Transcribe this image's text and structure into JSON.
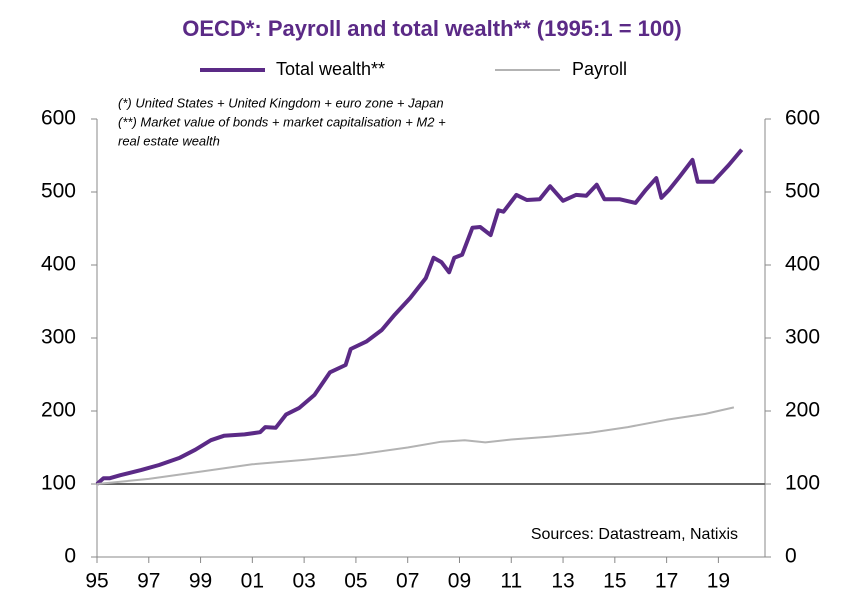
{
  "chart_data": {
    "type": "line",
    "title": "OECD*:  Payroll and total wealth** (1995:1 = 100)",
    "notes": [
      "(*) United States + United Kingdom + euro zone + Japan",
      "(**) Market value of bonds + market capitalisation + M2 +",
      "real estate wealth"
    ],
    "source": "Sources:  Datastream,  Natixis",
    "series": [
      {
        "name": "Total wealth**",
        "color": "#5b2a86",
        "x": [
          1995,
          1995.25,
          1995.5,
          1995.9,
          1996.7,
          1997.4,
          1998.2,
          1998.8,
          1999.4,
          1999.9,
          2000.7,
          2001.3,
          2001.5,
          2001.9,
          2002.3,
          2002.8,
          2003.4,
          2004,
          2004.6,
          2004.8,
          2005.4,
          2006,
          2006.5,
          2007.1,
          2007.7,
          2008,
          2008.3,
          2008.6,
          2008.8,
          2009.1,
          2009.5,
          2009.8,
          2010.2,
          2010.5,
          2010.7,
          2011.2,
          2011.6,
          2012.1,
          2012.5,
          2013,
          2013.5,
          2013.9,
          2014.3,
          2014.6,
          2015.2,
          2015.8,
          2016.2,
          2016.6,
          2016.8,
          2017.1,
          2017.5,
          2018,
          2018.2,
          2018.8,
          2019.4,
          2019.9
        ],
        "values": [
          100,
          108,
          108,
          112,
          119,
          126,
          136,
          147,
          160,
          166,
          168,
          171,
          178,
          177,
          195,
          204,
          222,
          253,
          263,
          285,
          295,
          311,
          332,
          355,
          382,
          410,
          404,
          390,
          410,
          414,
          451,
          452,
          441,
          475,
          473,
          496,
          489,
          490,
          508,
          488,
          496,
          495,
          510,
          490,
          490,
          485,
          503,
          519,
          492,
          503,
          521,
          544,
          514,
          514,
          537,
          558
        ]
      },
      {
        "name": "Payroll",
        "color": "#b3b3b3",
        "x": [
          1995,
          1997,
          1999,
          2001,
          2003,
          2005,
          2007,
          2008.3,
          2009.2,
          2010,
          2011,
          2012.5,
          2014,
          2015.5,
          2017,
          2018.5,
          2019.6
        ],
        "values": [
          100,
          107,
          117,
          127,
          133,
          140,
          150,
          158,
          160,
          157,
          161,
          165,
          170,
          178,
          188,
          196,
          205
        ]
      }
    ],
    "xlim": [
      1995,
      2020.8
    ],
    "xticks": [
      {
        "value": 1995,
        "label": "95"
      },
      {
        "value": 1997,
        "label": "97"
      },
      {
        "value": 1999,
        "label": "99"
      },
      {
        "value": 2001,
        "label": "01"
      },
      {
        "value": 2003,
        "label": "03"
      },
      {
        "value": 2005,
        "label": "05"
      },
      {
        "value": 2007,
        "label": "07"
      },
      {
        "value": 2009,
        "label": "09"
      },
      {
        "value": 2011,
        "label": "11"
      },
      {
        "value": 2013,
        "label": "13"
      },
      {
        "value": 2015,
        "label": "15"
      },
      {
        "value": 2017,
        "label": "17"
      },
      {
        "value": 2019,
        "label": "19"
      }
    ],
    "ylim": [
      0,
      600
    ],
    "yticks": [
      0,
      100,
      200,
      300,
      400,
      500,
      600
    ],
    "y2lim": [
      0,
      600
    ],
    "y2ticks": [
      0,
      100,
      200,
      300,
      400,
      500,
      600
    ],
    "reference_line": 100
  }
}
